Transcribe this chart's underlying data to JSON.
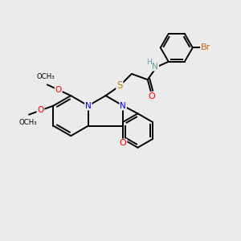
{
  "bg_color": "#ebebeb",
  "bond_color": "#000000",
  "bw": 1.4,
  "figsize": [
    3.0,
    3.0
  ],
  "dpi": 100,
  "xlim": [
    0,
    10
  ],
  "ylim": [
    0,
    10
  ]
}
